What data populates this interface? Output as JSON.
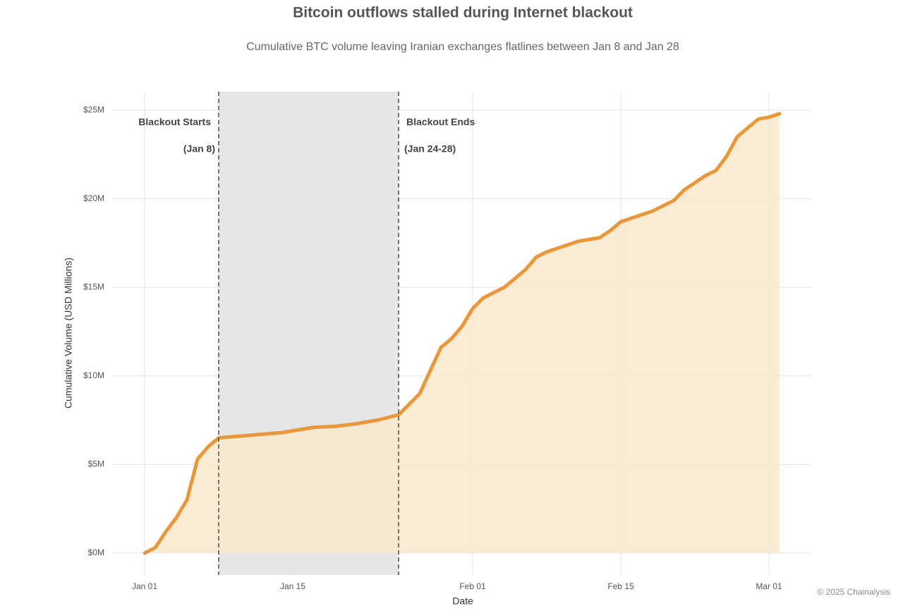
{
  "chart_data": {
    "type": "area",
    "title": "Bitcoin outflows stalled during Internet blackout",
    "subtitle": "Cumulative BTC volume leaving Iranian exchanges flatlines between Jan 8 and Jan 28",
    "xlabel": "Date",
    "ylabel": "Cumulative Volume (USD Millions)",
    "credit": "© 2025 Chainalysis",
    "color": "#e8973a",
    "fill_color": "#f9e8cc",
    "x": [
      "Jan 01",
      "Jan 02",
      "Jan 03",
      "Jan 04",
      "Jan 05",
      "Jan 06",
      "Jan 07",
      "Jan 08",
      "Jan 10",
      "Jan 12",
      "Jan 14",
      "Jan 15",
      "Jan 17",
      "Jan 19",
      "Jan 21",
      "Jan 23",
      "Jan 25",
      "Jan 26",
      "Jan 27",
      "Jan 28",
      "Jan 29",
      "Jan 30",
      "Jan 31",
      "Feb 01",
      "Feb 02",
      "Feb 03",
      "Feb 04",
      "Feb 05",
      "Feb 06",
      "Feb 07",
      "Feb 08",
      "Feb 09",
      "Feb 10",
      "Feb 11",
      "Feb 12",
      "Feb 13",
      "Feb 14",
      "Feb 15",
      "Feb 16",
      "Feb 17",
      "Feb 18",
      "Feb 19",
      "Feb 20",
      "Feb 21",
      "Feb 22",
      "Feb 23",
      "Feb 24",
      "Feb 25",
      "Feb 26",
      "Feb 27",
      "Feb 28",
      "Mar 01",
      "Mar 02"
    ],
    "values": [
      0,
      0.3,
      1.2,
      2.0,
      3.0,
      5.3,
      6.0,
      6.5,
      6.6,
      6.7,
      6.8,
      6.9,
      7.1,
      7.15,
      7.3,
      7.5,
      7.8,
      8.4,
      9.0,
      10.3,
      11.6,
      12.1,
      12.8,
      13.8,
      14.4,
      14.7,
      15.0,
      15.5,
      16.0,
      16.7,
      17.0,
      17.2,
      17.4,
      17.6,
      17.7,
      17.8,
      18.2,
      18.7,
      18.9,
      19.1,
      19.3,
      19.6,
      19.9,
      20.5,
      20.9,
      21.3,
      21.6,
      22.4,
      23.5,
      24.0,
      24.5,
      24.6,
      24.8
    ],
    "xticks": [
      "Jan 01",
      "Jan 15",
      "Feb 01",
      "Feb 15",
      "Mar 01"
    ],
    "ylim": [
      -1.24,
      26.04
    ],
    "yticks": [
      {
        "value": 0,
        "label": "$0M"
      },
      {
        "value": 5,
        "label": "$5M"
      },
      {
        "value": 10,
        "label": "$10M"
      },
      {
        "value": 15,
        "label": "$15M"
      },
      {
        "value": 20,
        "label": "$20M"
      },
      {
        "value": 25,
        "label": "$25M"
      }
    ],
    "grid": true,
    "blackout": {
      "start": "Jan 08",
      "end": "Jan 25",
      "color": "#e6e6e6",
      "start_label": "Blackout Starts",
      "start_date": "(Jan 8)",
      "end_label": "Blackout Ends",
      "end_date": "(Jan 24-28)"
    }
  }
}
